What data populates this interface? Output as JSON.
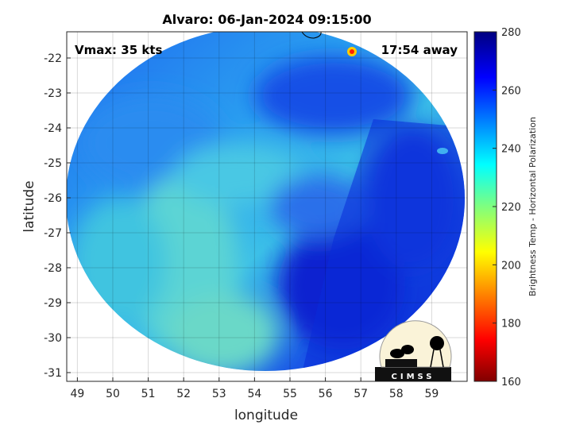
{
  "title": "Alvaro: 06-Jan-2024 09:15:00",
  "annotations": {
    "vmax": "Vmax: 35 kts",
    "away": "17:54 away"
  },
  "x_axis": {
    "label": "longitude",
    "ticks": [
      "49",
      "50",
      "51",
      "52",
      "53",
      "54",
      "55",
      "56",
      "57",
      "58",
      "59"
    ],
    "range": [
      48.7,
      60.0
    ]
  },
  "y_axis": {
    "label": "latitude",
    "ticks": [
      "-22",
      "-23",
      "-24",
      "-25",
      "-26",
      "-27",
      "-28",
      "-29",
      "-30",
      "-31"
    ],
    "range": [
      -31.25,
      -21.25
    ]
  },
  "colorbar": {
    "label": "Brightness Temp - Horizontal Polarization",
    "ticks": [
      "280",
      "260",
      "240",
      "220",
      "200",
      "180",
      "160"
    ],
    "range": [
      160,
      280
    ],
    "colormap": "jet"
  },
  "logo": {
    "text": "CIMSS"
  },
  "colors": {
    "deep_blue": "#0a1fd6",
    "mid_blue": "#1f6af0",
    "cyan": "#2fc0ee",
    "light": "#5ad6d8"
  }
}
